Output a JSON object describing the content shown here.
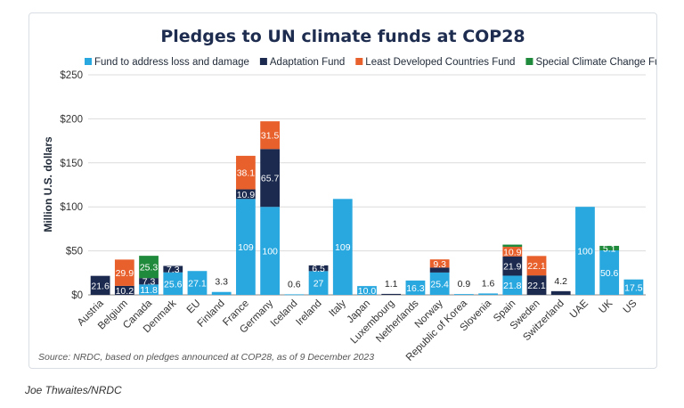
{
  "chart_data": {
    "type": "bar",
    "stacked": true,
    "title": "Pledges to UN climate funds at COP28",
    "ylabel": "Million U.S. dollars",
    "ylim": [
      0,
      250
    ],
    "yticks": [
      "$0",
      "$50",
      "$100",
      "$150",
      "$200",
      "$250"
    ],
    "ytick_values": [
      0,
      50,
      100,
      150,
      200,
      250
    ],
    "grid": true,
    "legend_position": "top",
    "categories": [
      "Austria",
      "Belgium",
      "Canada",
      "Denmark",
      "EU",
      "Finland",
      "France",
      "Germany",
      "Iceland",
      "Ireland",
      "Italy",
      "Japan",
      "Luxembourg",
      "Netherlands",
      "Norway",
      "Republic of Korea",
      "Slovenia",
      "Spain",
      "Sweden",
      "Switzerland",
      "UAE",
      "UK",
      "US"
    ],
    "series": [
      {
        "name": "Fund to address loss and damage",
        "color": "#29a8e0",
        "values": [
          0,
          0,
          11.8,
          25.6,
          27.1,
          3.3,
          109,
          100,
          0.6,
          27,
          109,
          10.0,
          0,
          16.3,
          25.4,
          0.9,
          1.6,
          21.8,
          0,
          0,
          100,
          50.6,
          17.5
        ],
        "labels": [
          "",
          "",
          "11.8",
          "25.6",
          "27.1",
          "",
          "109",
          "100",
          "",
          "27",
          "109",
          "10.0",
          "",
          "16.3",
          "25.4",
          "",
          "",
          "21.8",
          "",
          "",
          "100",
          "50.6",
          "17.5"
        ]
      },
      {
        "name": "Adaptation Fund",
        "color": "#1b2a4e",
        "values": [
          21.6,
          10.2,
          7.3,
          7.3,
          0,
          0,
          10.9,
          65.7,
          0,
          6.5,
          0,
          0,
          1.1,
          0,
          5.6,
          0,
          0,
          21.9,
          22.1,
          4.2,
          0,
          0,
          0
        ],
        "labels": [
          "21.6",
          "10.2",
          "7.3",
          "7.3",
          "",
          "",
          "10.9",
          "65.7",
          "",
          "6.5",
          "",
          "",
          "",
          "",
          "",
          "",
          "",
          "21.9",
          "22.1",
          "",
          "",
          "",
          ""
        ]
      },
      {
        "name": "Least Developed Countries Fund",
        "color": "#e8602c",
        "values": [
          0,
          29.9,
          0,
          0,
          0,
          0,
          38.1,
          31.5,
          0,
          0,
          0,
          0,
          0,
          0,
          9.3,
          0,
          0,
          10.9,
          22.1,
          0,
          0,
          0,
          0
        ],
        "labels": [
          "",
          "29.9",
          "",
          "",
          "",
          "",
          "38.1",
          "31.5",
          "",
          "",
          "",
          "",
          "",
          "",
          "9.3",
          "",
          "",
          "10.9",
          "22.1",
          "",
          "",
          "",
          ""
        ]
      },
      {
        "name": "Special Climate Change Fund",
        "color": "#1f8a3b",
        "values": [
          0,
          0,
          25.3,
          0,
          0,
          0,
          0,
          0,
          0,
          0,
          0,
          0,
          0,
          0,
          0,
          0,
          0,
          2.5,
          0,
          0,
          0,
          5.1,
          0
        ],
        "labels": [
          "",
          "",
          "25.3",
          "",
          "",
          "",
          "",
          "",
          "",
          "",
          "",
          "",
          "",
          "",
          "",
          "",
          "",
          "",
          "",
          "",
          "",
          "5.1",
          ""
        ]
      }
    ],
    "above_labels": [
      "",
      "",
      "",
      "",
      "",
      "3.3",
      "",
      "",
      "0.6",
      "",
      "",
      "",
      "1.1",
      "",
      "",
      "0.9",
      "1.6",
      "",
      "",
      "4.2",
      "",
      "",
      ""
    ],
    "source": "Source: NRDC, based on pledges announced at COP28, as of 9 December 2023"
  },
  "credit": "Joe Thwaites/NRDC"
}
